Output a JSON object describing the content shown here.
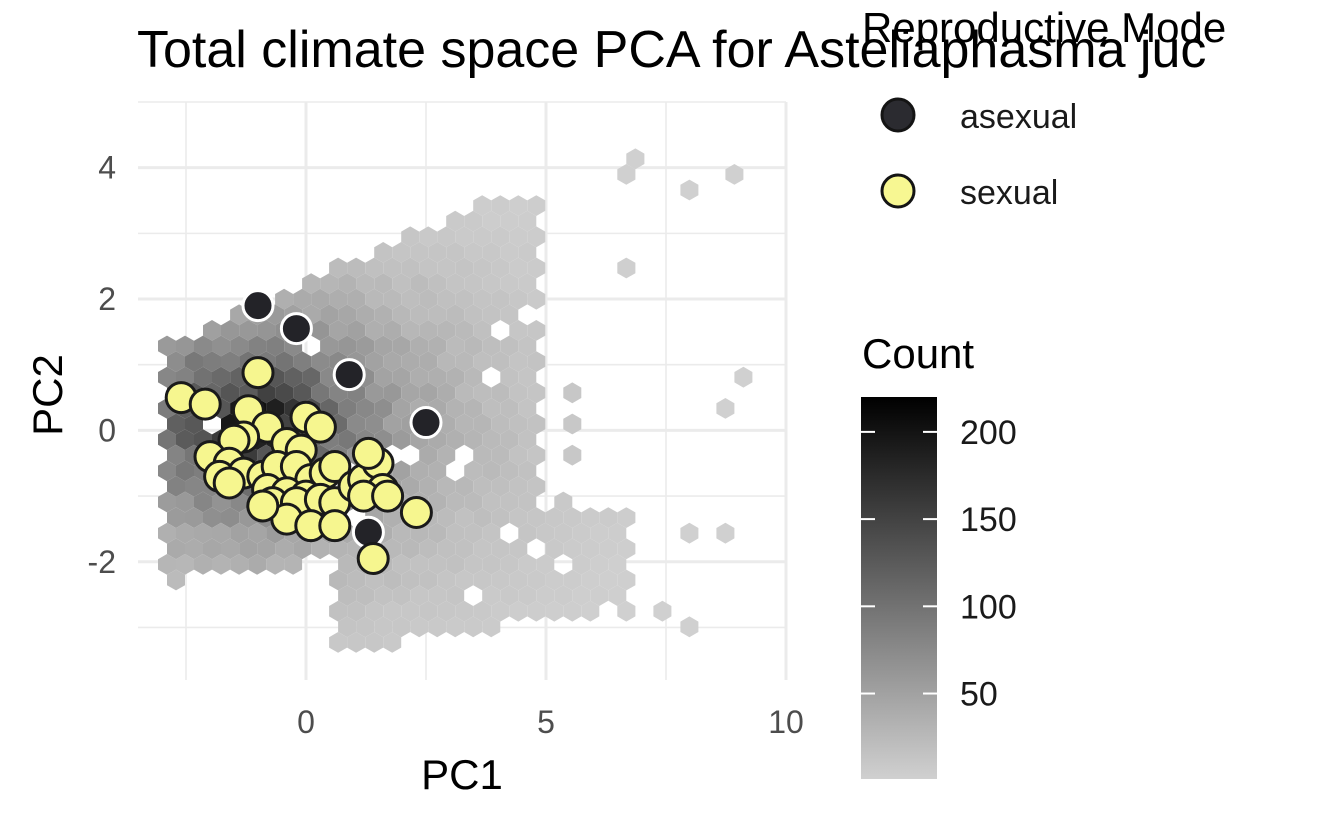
{
  "chart_data": {
    "type": "scatter",
    "title": "Total climate space PCA for Asteliaphasma juc",
    "xlabel": "PC1",
    "ylabel": "PC2",
    "xlim": [
      -3.5,
      10
    ],
    "ylim": [
      -3.8,
      5.0
    ],
    "xticks": [
      0,
      5,
      10
    ],
    "xtick_labels": [
      "0",
      "5",
      "10"
    ],
    "yticks": [
      -2,
      0,
      2,
      4
    ],
    "ytick_labels": [
      "-2",
      "0",
      "2",
      "4"
    ],
    "grid": true,
    "background_layer": {
      "type": "hexbin",
      "legend_title": "Count",
      "color_low": "#d0d0d0",
      "color_high": "#000000",
      "count_range": [
        1,
        220
      ],
      "colorbar_ticks": [
        50,
        100,
        150,
        200
      ],
      "colorbar_tick_labels": [
        "50",
        "100",
        "150",
        "200"
      ]
    },
    "legend": {
      "title": "Reproductive Mode",
      "placement": "right",
      "entries": [
        {
          "label": "asexual",
          "color": "#2b2b30"
        },
        {
          "label": "sexual",
          "color": "#f7f792"
        }
      ]
    },
    "series": [
      {
        "name": "asexual",
        "color": "#232328",
        "points": [
          [
            -1.0,
            1.9
          ],
          [
            -0.2,
            1.55
          ],
          [
            0.9,
            0.85
          ],
          [
            2.5,
            0.12
          ],
          [
            -0.4,
            -0.6
          ],
          [
            0.4,
            -1.15
          ],
          [
            1.3,
            -1.55
          ]
        ]
      },
      {
        "name": "sexual",
        "color": "#f6f68f",
        "points": [
          [
            -2.6,
            0.5
          ],
          [
            -2.1,
            0.4
          ],
          [
            -1.0,
            0.88
          ],
          [
            -1.2,
            0.3
          ],
          [
            0.0,
            0.2
          ],
          [
            0.3,
            0.05
          ],
          [
            -0.8,
            0.05
          ],
          [
            -1.3,
            -0.1
          ],
          [
            -1.5,
            -0.15
          ],
          [
            -0.4,
            -0.2
          ],
          [
            -0.1,
            -0.3
          ],
          [
            -2.0,
            -0.4
          ],
          [
            -1.6,
            -0.5
          ],
          [
            -1.8,
            -0.7
          ],
          [
            -1.3,
            -0.65
          ],
          [
            -0.9,
            -0.7
          ],
          [
            -0.6,
            -0.55
          ],
          [
            -0.2,
            -0.55
          ],
          [
            0.1,
            -0.75
          ],
          [
            0.4,
            -0.65
          ],
          [
            0.6,
            -0.55
          ],
          [
            -1.6,
            -0.8
          ],
          [
            -0.8,
            -0.9
          ],
          [
            -0.4,
            -0.95
          ],
          [
            0.0,
            -1.0
          ],
          [
            -0.7,
            -1.1
          ],
          [
            -0.2,
            -1.1
          ],
          [
            0.3,
            -1.05
          ],
          [
            0.6,
            -1.1
          ],
          [
            1.0,
            -0.85
          ],
          [
            1.2,
            -0.75
          ],
          [
            1.5,
            -0.5
          ],
          [
            1.6,
            -0.9
          ],
          [
            1.2,
            -1.0
          ],
          [
            1.7,
            -1.0
          ],
          [
            -0.4,
            -1.35
          ],
          [
            0.1,
            -1.45
          ],
          [
            0.6,
            -1.45
          ],
          [
            1.3,
            -0.35
          ],
          [
            2.3,
            -1.25
          ],
          [
            1.4,
            -1.95
          ],
          [
            -0.9,
            -1.15
          ]
        ]
      }
    ]
  }
}
